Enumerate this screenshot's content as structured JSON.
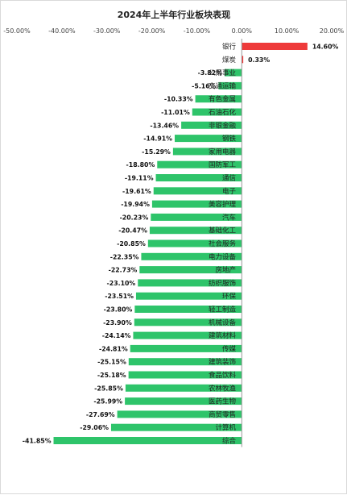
{
  "chart_data": {
    "type": "bar",
    "orientation": "horizontal",
    "title": "2024年上半年行业板块表现",
    "xlim": [
      -50,
      20
    ],
    "xticks": [
      -50,
      -40,
      -30,
      -20,
      -10,
      0,
      10,
      20
    ],
    "tick_labels": [
      "-50.00%",
      "-40.00%",
      "-30.00%",
      "-20.00%",
      "-10.00%",
      "0.00%",
      "10.00%",
      "20.00%"
    ],
    "categories": [
      "银行",
      "煤炭",
      "公用事业",
      "交通运输",
      "有色金属",
      "石油石化",
      "非银金融",
      "钢铁",
      "家用电器",
      "国防军工",
      "通信",
      "电子",
      "美容护理",
      "汽车",
      "基础化工",
      "社会服务",
      "电力设备",
      "房地产",
      "纺织服饰",
      "环保",
      "轻工制造",
      "机械设备",
      "建筑材料",
      "传媒",
      "建筑装饰",
      "食品饮料",
      "农林牧渔",
      "医药生物",
      "商贸零售",
      "计算机",
      "综合"
    ],
    "values": [
      14.6,
      0.33,
      -3.82,
      -5.16,
      -10.33,
      -11.01,
      -13.46,
      -14.91,
      -15.29,
      -18.8,
      -19.11,
      -19.61,
      -19.94,
      -20.23,
      -20.47,
      -20.85,
      -22.35,
      -22.73,
      -23.1,
      -23.51,
      -23.8,
      -23.9,
      -24.14,
      -24.81,
      -25.15,
      -25.18,
      -25.85,
      -25.99,
      -27.69,
      -29.06,
      -41.85
    ],
    "value_labels": [
      "14.60%",
      "0.33%",
      "-3.82%",
      "-5.16%",
      "-10.33%",
      "-11.01%",
      "-13.46%",
      "-14.91%",
      "-15.29%",
      "-18.80%",
      "-19.11%",
      "-19.61%",
      "-19.94%",
      "-20.23%",
      "-20.47%",
      "-20.85%",
      "-22.35%",
      "-22.73%",
      "-23.10%",
      "-23.51%",
      "-23.80%",
      "-23.90%",
      "-24.14%",
      "-24.81%",
      "-25.15%",
      "-25.18%",
      "-25.85%",
      "-25.99%",
      "-27.69%",
      "-29.06%",
      "-41.85%"
    ],
    "colors": {
      "positive": "#ee3a3a",
      "negative": "#2ec46a",
      "axis": "#999999"
    },
    "grid": false,
    "legend": "none"
  }
}
